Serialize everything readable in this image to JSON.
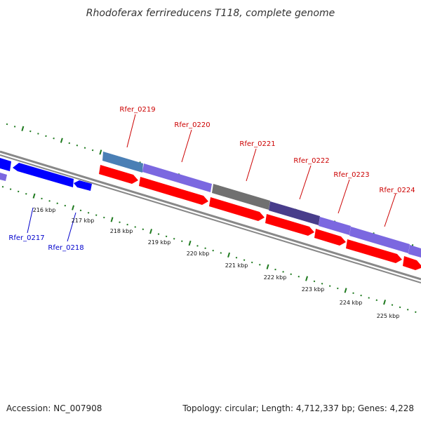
{
  "title": "Rhodoferax ferrireducens T118, complete genome",
  "footer": {
    "accession": "Accession: NC_007908",
    "summary": "Topology: circular; Length: 4,712,337 bp; Genes: 4,228"
  },
  "colors": {
    "forward_label": "#cc0000",
    "reverse_label": "#0000cc",
    "ruler": "#1f7a1f",
    "backbone": "#888888"
  },
  "ruler_labels": [
    "216 kbp",
    "217 kbp",
    "218 kbp",
    "219 kbp",
    "220 kbp",
    "221 kbp",
    "222 kbp",
    "223 kbp",
    "224 kbp",
    "225 kbp"
  ],
  "forward_labels": [
    "Rfer_0219",
    "Rfer_0220",
    "Rfer_0221",
    "Rfer_0222",
    "Rfer_0223",
    "Rfer_0224"
  ],
  "reverse_labels": [
    "Rfer_0217",
    "Rfer_0218"
  ],
  "gene_tracks": {
    "upper_colors": [
      "#4a7fb5",
      "#7b68e0",
      "#707070",
      "#483d8b",
      "#7b68e0",
      "#7b68e0",
      "#7b68e0"
    ],
    "cds_color": "#ff0000",
    "reverse_color": "#0000ff"
  }
}
